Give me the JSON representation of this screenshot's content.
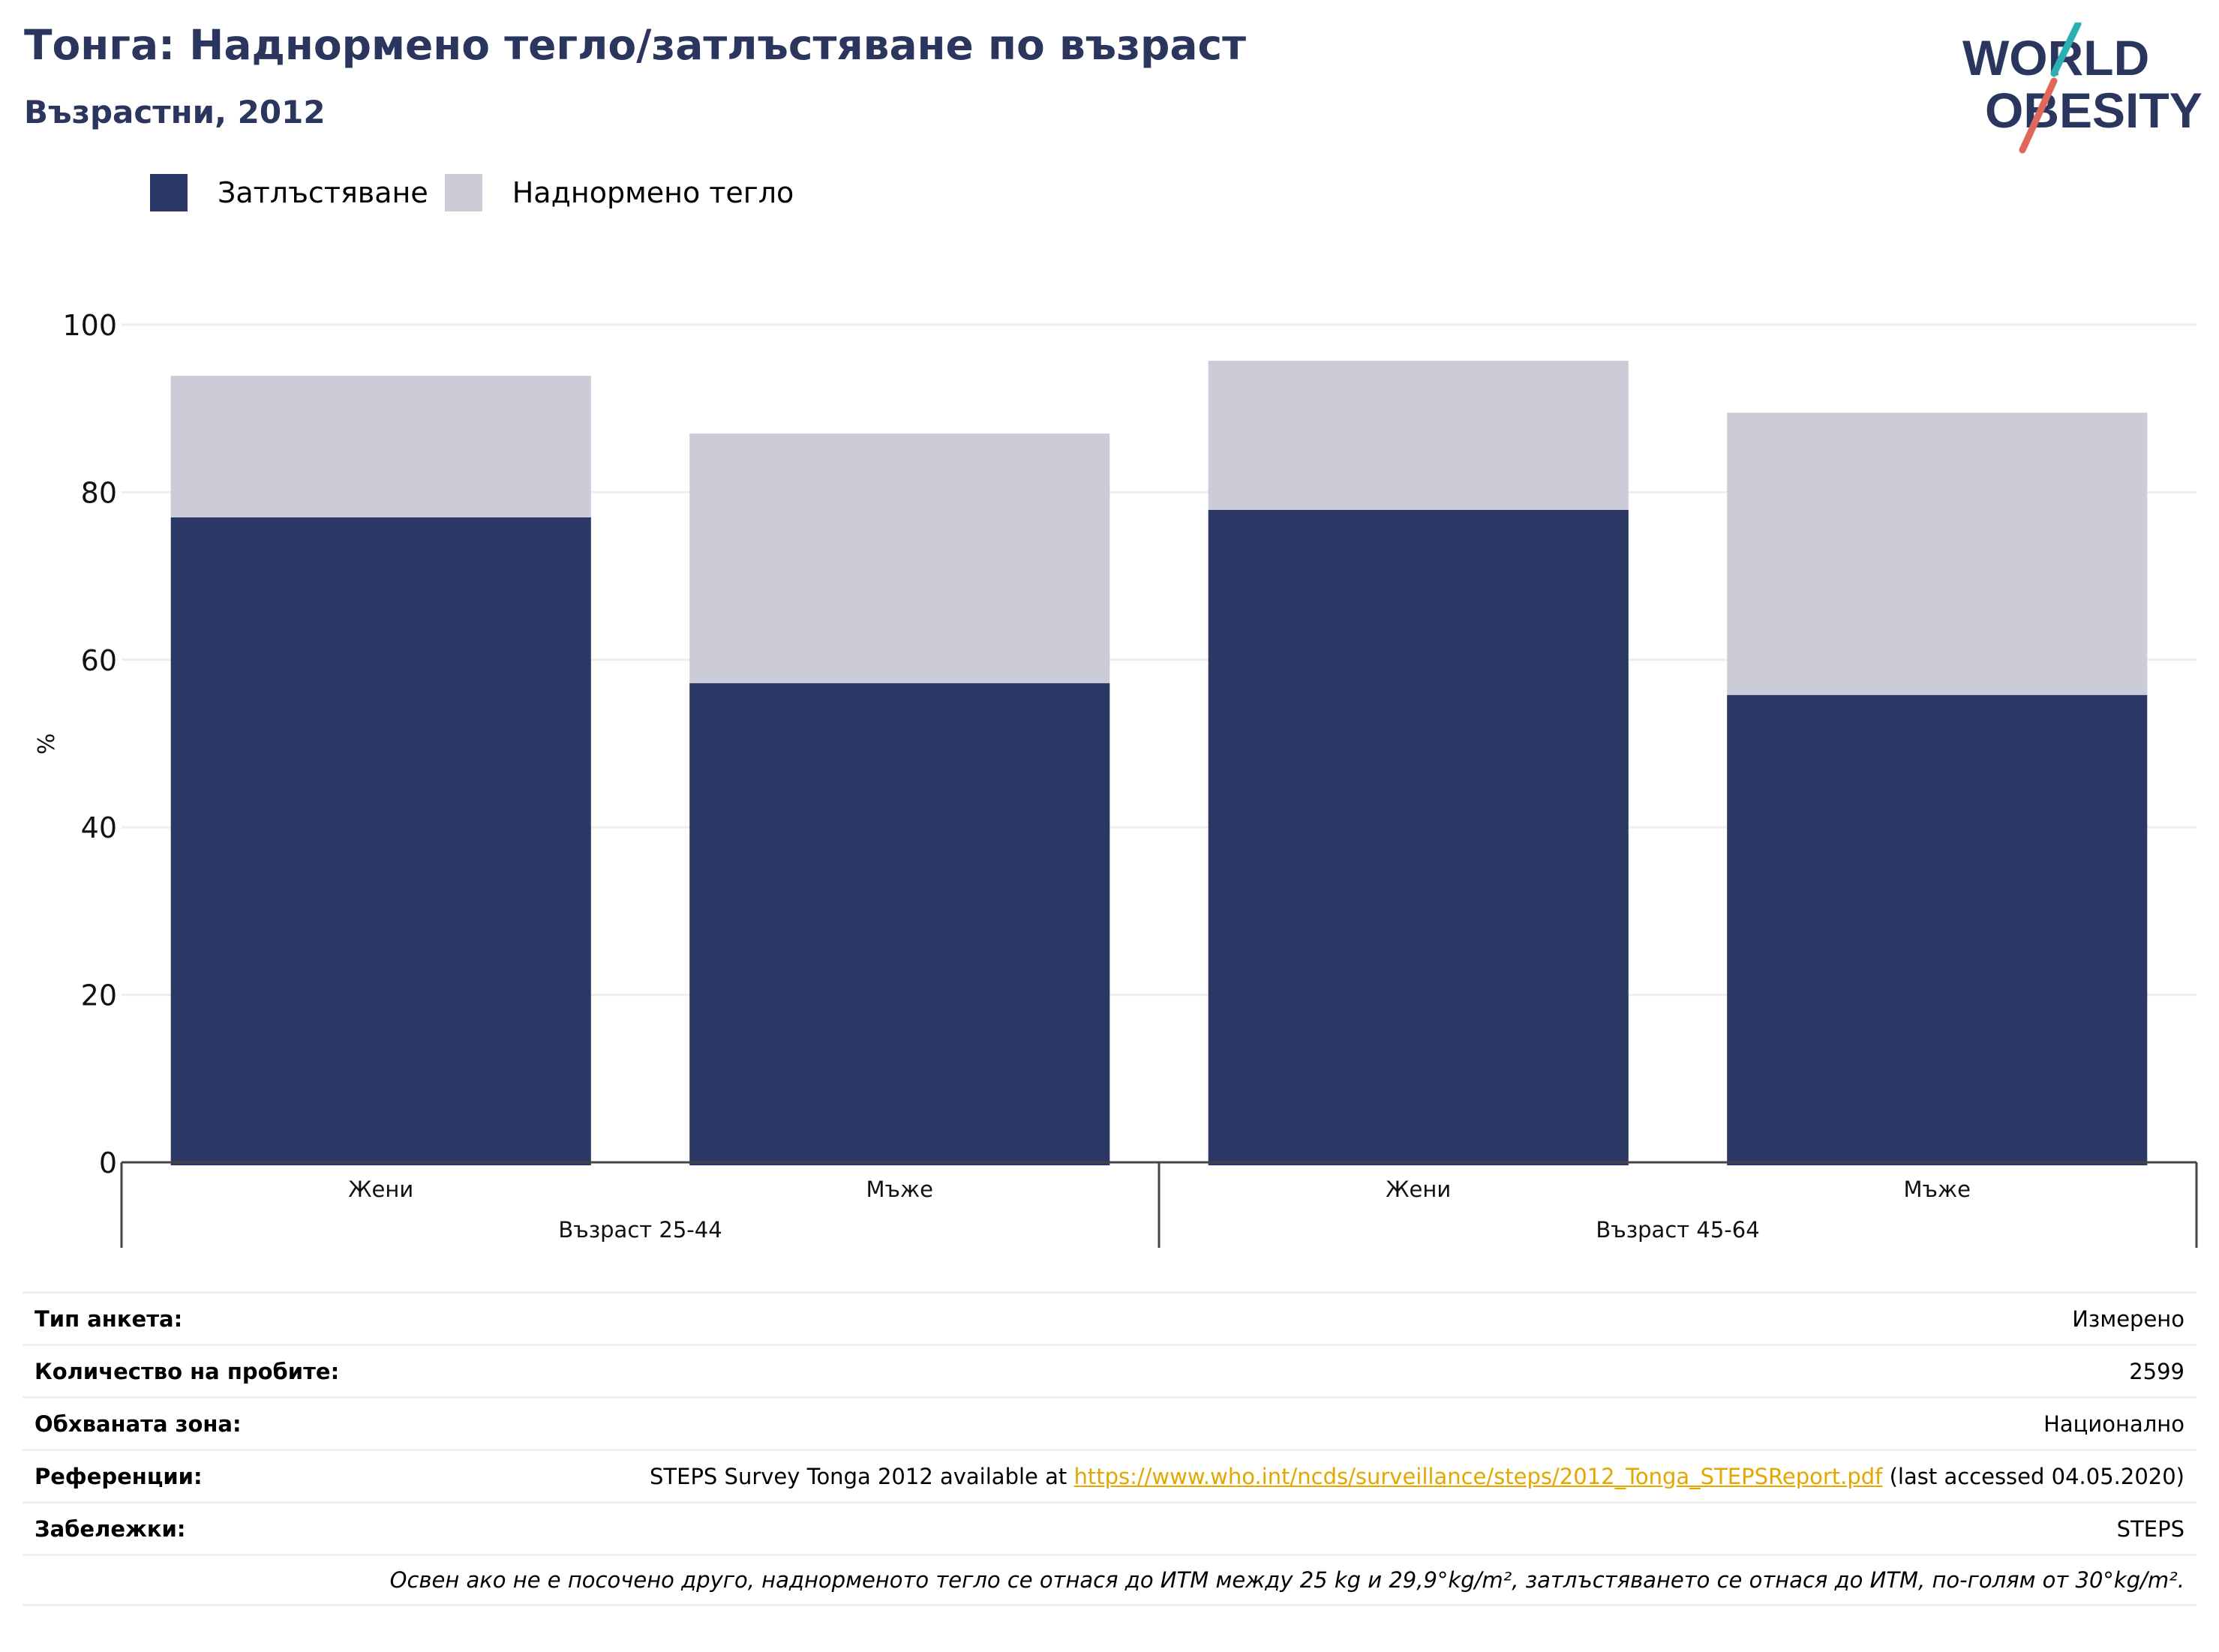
{
  "header": {
    "title": "Тонга: Наднормено тегло/затлъстяване по възраст",
    "subtitle": "Възрастни, 2012"
  },
  "logo": {
    "line1": "WORLD",
    "line2": "OBESITY",
    "colors": {
      "navy": "#2b365f",
      "teal": "#2ab0b3",
      "coral": "#e0685a"
    }
  },
  "legend": {
    "items": [
      {
        "label": "Затлъстяване",
        "color": "#2b3764"
      },
      {
        "label": "Наднормено тегло",
        "color": "#cbccd8"
      }
    ]
  },
  "chart_data": {
    "type": "bar",
    "stacked": true,
    "ylabel": "%",
    "xlabel": "",
    "ylim": [
      0,
      100
    ],
    "yticks": [
      0,
      20,
      40,
      60,
      80,
      100
    ],
    "grid": true,
    "legend_position": "top-left",
    "groups": [
      {
        "label": "Възраст 25-44",
        "categories": [
          "Жени",
          "Мъже"
        ]
      },
      {
        "label": "Възраст 45-64",
        "categories": [
          "Жени",
          "Мъже"
        ]
      }
    ],
    "categories": [
      "Жени",
      "Мъже",
      "Жени",
      "Мъже"
    ],
    "series": [
      {
        "name": "Затлъстяване",
        "color": "#2b3764",
        "values": [
          77.0,
          57.2,
          77.9,
          55.8
        ]
      },
      {
        "name": "Наднормено тегло",
        "color": "#cbccd8",
        "values": [
          16.9,
          29.8,
          17.8,
          33.7
        ]
      }
    ]
  },
  "info": {
    "survey_type": {
      "label": "Тип анкета:",
      "value": "Измерено"
    },
    "sample_size": {
      "label": "Количество на пробите:",
      "value": "2599"
    },
    "area": {
      "label": "Обхваната зона:",
      "value": "Национално"
    },
    "references": {
      "label": "Референции:",
      "prefix": "STEPS Survey Tonga 2012 available at ",
      "link": "https://www.who.int/ncds/surveillance/steps/2012_Tonga_STEPSReport.pdf",
      "suffix": " (last accessed 04.05.2020)"
    },
    "notes": {
      "label": "Забележки:",
      "value": "STEPS"
    },
    "footnote": "Освен ако не е посочено друго, наднорменото тегло се отнася до ИТМ между 25 kg и 29,9°kg/m², затлъстяването се отнася до ИТМ, по-голям от 30°kg/m²."
  }
}
